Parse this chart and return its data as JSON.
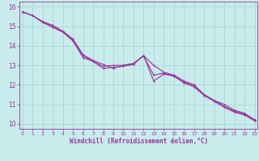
{
  "xlabel": "Windchill (Refroidissement éolien,°C)",
  "bg_color": "#c8ecec",
  "grid_color": "#b0d8d8",
  "line_color": "#993399",
  "x_ticks": [
    0,
    1,
    2,
    3,
    4,
    5,
    6,
    7,
    8,
    9,
    10,
    11,
    12,
    13,
    14,
    15,
    16,
    17,
    18,
    19,
    20,
    21,
    22,
    23
  ],
  "y_ticks": [
    10,
    11,
    12,
    13,
    14,
    15,
    16
  ],
  "xlim": [
    -0.3,
    23.3
  ],
  "ylim": [
    9.75,
    16.25
  ],
  "line1_x": [
    0,
    1,
    2,
    3,
    4,
    5,
    6,
    7,
    8,
    9,
    10,
    11,
    12,
    13,
    14,
    15,
    16,
    17,
    18,
    19,
    20,
    21,
    22,
    23
  ],
  "line1_y": [
    15.75,
    15.55,
    15.25,
    15.05,
    14.75,
    14.35,
    13.55,
    13.25,
    13.05,
    12.85,
    13.0,
    13.1,
    13.5,
    13.0,
    12.65,
    12.5,
    12.2,
    12.0,
    11.5,
    11.2,
    11.0,
    10.7,
    10.55,
    10.2
  ],
  "line2_x": [
    0,
    1,
    2,
    3,
    4,
    5,
    6,
    7,
    8,
    9,
    10,
    11,
    12,
    13,
    14,
    15,
    16,
    17,
    18,
    19,
    20,
    21,
    22,
    23
  ],
  "line2_y": [
    15.75,
    15.55,
    15.22,
    15.0,
    14.72,
    14.3,
    13.5,
    13.2,
    12.95,
    13.0,
    13.0,
    13.1,
    13.48,
    12.5,
    12.6,
    12.45,
    12.15,
    11.95,
    11.5,
    11.2,
    10.9,
    10.65,
    10.5,
    10.22
  ],
  "line3_x": [
    0,
    1,
    2,
    3,
    4,
    5,
    6,
    7,
    8,
    9,
    10,
    11,
    12,
    13,
    14,
    15,
    16,
    17,
    18,
    19,
    20,
    21,
    22,
    23
  ],
  "line3_y": [
    15.75,
    15.55,
    15.2,
    14.95,
    14.7,
    14.25,
    13.4,
    13.2,
    12.85,
    12.9,
    12.95,
    13.05,
    13.5,
    12.2,
    12.55,
    12.45,
    12.1,
    11.9,
    11.45,
    11.15,
    10.85,
    10.6,
    10.45,
    10.15
  ]
}
